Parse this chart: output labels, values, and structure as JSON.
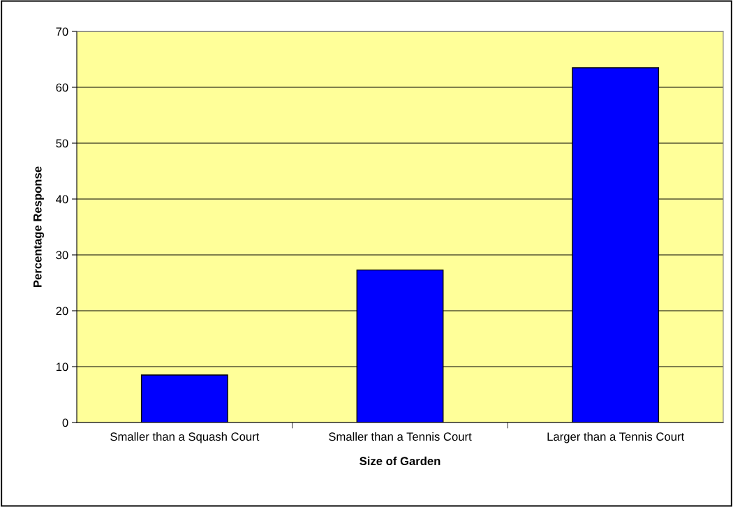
{
  "chart_data": {
    "type": "bar",
    "xlabel": "Size of Garden",
    "ylabel": "Percentage Response",
    "categories": [
      "Smaller than a Squash Court",
      "Smaller than a Tennis Court",
      "Larger than a Tennis Court"
    ],
    "values": [
      8.5,
      27.3,
      63.5
    ],
    "color": "#0000ff",
    "ylim": [
      0,
      70
    ],
    "yticks": [
      0,
      10,
      20,
      30,
      40,
      50,
      60,
      70
    ],
    "grid": "y",
    "legend": false
  }
}
